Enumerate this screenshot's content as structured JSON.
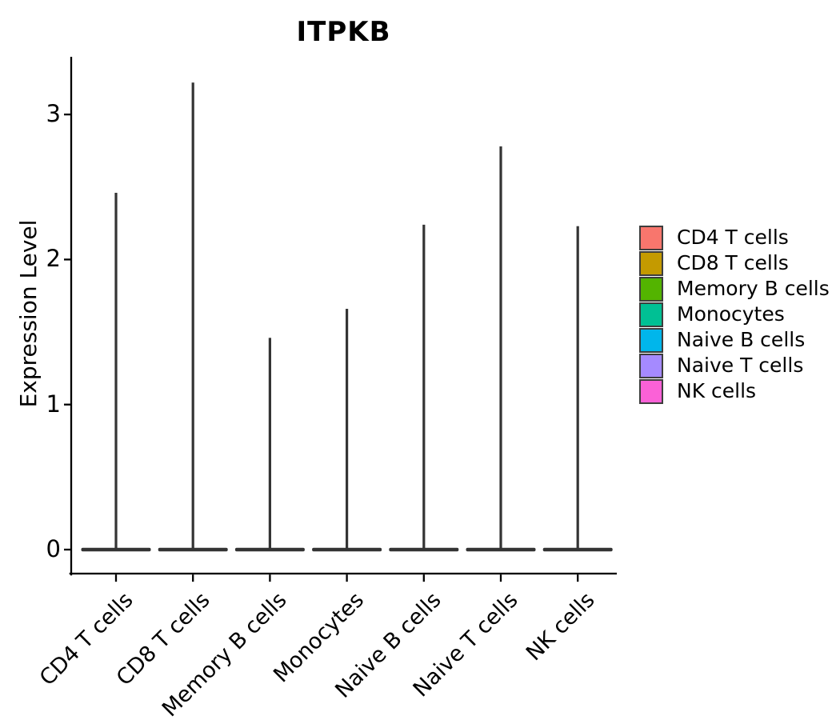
{
  "chart_data": {
    "type": "violin",
    "title": "ITPKB",
    "ylabel": "Expression Level",
    "xlabel": "",
    "categories": [
      "CD4 T cells",
      "CD8 T cells",
      "Memory B cells",
      "Monocytes",
      "Naive B cells",
      "Naive T cells",
      "NK cells"
    ],
    "ytick_labels": [
      "0",
      "1",
      "2",
      "3"
    ],
    "ytick_values": [
      0,
      1,
      2,
      3
    ],
    "ylim": [
      -0.17,
      3.39
    ],
    "grid": "off",
    "legend_position": "right",
    "violin_color": "#343434",
    "axis_color": "#000000",
    "series": [
      {
        "name": "CD4 T cells",
        "color": "#F8766D",
        "max_expression": 2.46,
        "baseline_density_at": 0
      },
      {
        "name": "CD8 T cells",
        "color": "#C49A00",
        "max_expression": 3.22,
        "baseline_density_at": 0
      },
      {
        "name": "Memory B cells",
        "color": "#53B400",
        "max_expression": 1.46,
        "baseline_density_at": 0
      },
      {
        "name": "Monocytes",
        "color": "#00C094",
        "max_expression": 1.66,
        "baseline_density_at": 0
      },
      {
        "name": "Naive B cells",
        "color": "#00B6EB",
        "max_expression": 2.24,
        "baseline_density_at": 0
      },
      {
        "name": "Naive T cells",
        "color": "#A58AFF",
        "max_expression": 2.78,
        "baseline_density_at": 0
      },
      {
        "name": "NK cells",
        "color": "#FB61D7",
        "max_expression": 2.23,
        "baseline_density_at": 0
      }
    ]
  }
}
